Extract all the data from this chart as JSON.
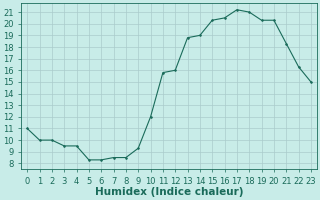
{
  "x": [
    0,
    1,
    2,
    3,
    4,
    5,
    6,
    7,
    8,
    9,
    10,
    11,
    12,
    13,
    14,
    15,
    16,
    17,
    18,
    19,
    20,
    21,
    22,
    23
  ],
  "y": [
    11,
    10,
    10,
    9.5,
    9.5,
    8.3,
    8.3,
    8.5,
    8.5,
    9.3,
    12.0,
    15.8,
    16.0,
    18.8,
    19.0,
    20.3,
    20.5,
    21.2,
    21.0,
    20.3,
    20.3,
    18.3,
    16.3,
    15.0
  ],
  "line_color": "#1a6b5a",
  "marker_color": "#1a6b5a",
  "bg_color": "#c8ece8",
  "grid_color": "#aacccc",
  "xlabel": "Humidex (Indice chaleur)",
  "xlim": [
    -0.5,
    23.5
  ],
  "ylim": [
    7.5,
    21.8
  ],
  "yticks": [
    8,
    9,
    10,
    11,
    12,
    13,
    14,
    15,
    16,
    17,
    18,
    19,
    20,
    21
  ],
  "xticks": [
    0,
    1,
    2,
    3,
    4,
    5,
    6,
    7,
    8,
    9,
    10,
    11,
    12,
    13,
    14,
    15,
    16,
    17,
    18,
    19,
    20,
    21,
    22,
    23
  ],
  "font_color": "#1a6b5a",
  "label_fontsize": 7.5,
  "tick_fontsize": 6.0
}
